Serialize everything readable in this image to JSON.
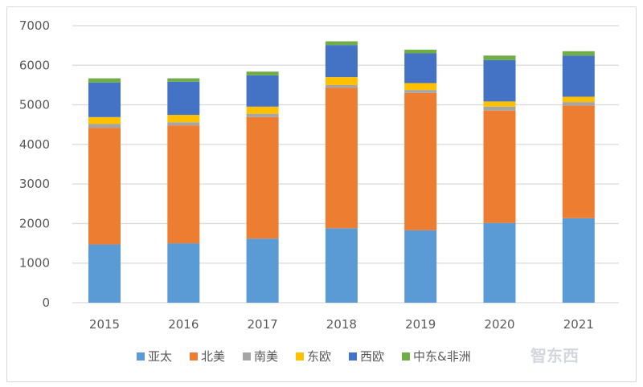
{
  "chart_data": {
    "type": "bar",
    "stacked": true,
    "categories": [
      "2015",
      "2016",
      "2017",
      "2018",
      "2019",
      "2020",
      "2021"
    ],
    "series": [
      {
        "name": "亚太",
        "color": "#5B9BD5",
        "values": [
          1470,
          1500,
          1620,
          1880,
          1830,
          2015,
          2135
        ]
      },
      {
        "name": "北美",
        "color": "#ED7D31",
        "values": [
          2950,
          2980,
          3070,
          3555,
          3470,
          2840,
          2845
        ]
      },
      {
        "name": "南美",
        "color": "#A5A5A5",
        "values": [
          95,
          80,
          85,
          65,
          75,
          100,
          90
        ]
      },
      {
        "name": "东欧",
        "color": "#FFC000",
        "values": [
          175,
          185,
          180,
          200,
          175,
          130,
          135
        ]
      },
      {
        "name": "西欧",
        "color": "#4472C4",
        "values": [
          875,
          840,
          790,
          810,
          750,
          1045,
          1040
        ]
      },
      {
        "name": "中东&非洲",
        "color": "#70AD47",
        "values": [
          105,
          85,
          95,
          95,
          95,
          115,
          110
        ]
      }
    ],
    "ylim": [
      0,
      7000
    ],
    "yticks": [
      "0",
      "1000",
      "2000",
      "3000",
      "4000",
      "5000",
      "6000",
      "7000"
    ],
    "grid": true,
    "legend_position": "bottom",
    "title": "",
    "xlabel": "",
    "ylabel": ""
  },
  "watermark": "智东西"
}
